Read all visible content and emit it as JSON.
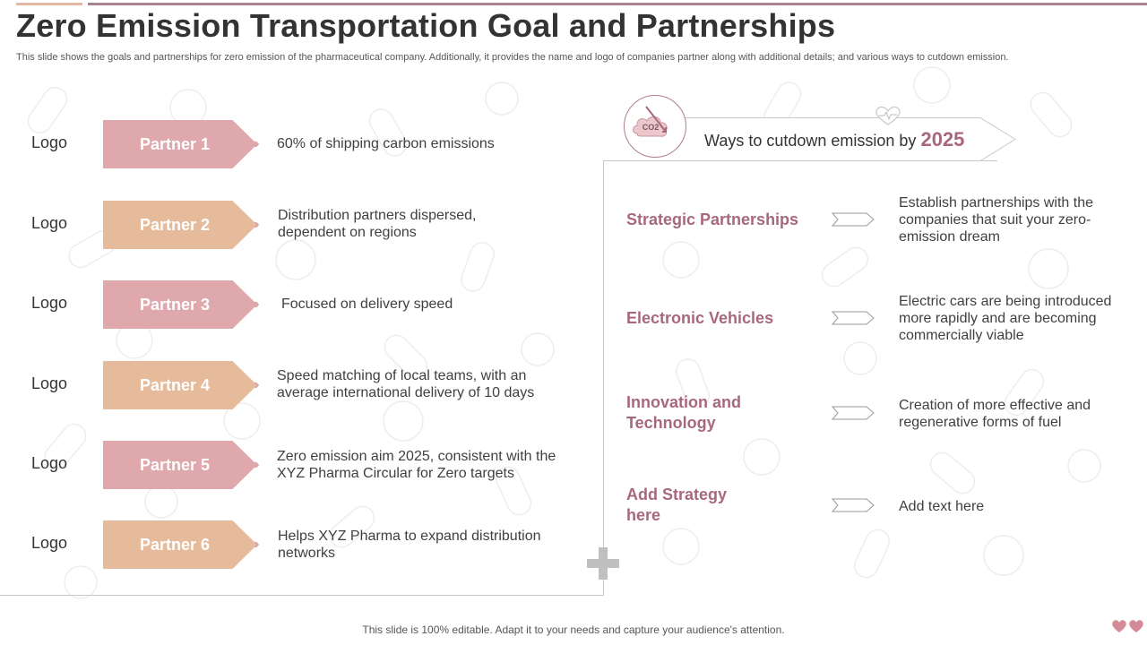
{
  "header": {
    "title": "Zero Emission Transportation Goal and Partnerships",
    "subtitle": "This slide shows the goals and partnerships for zero emission of the pharmaceutical company. Additionally, it provides the name and logo of companies partner along with additional details; and various ways to cutdown emission."
  },
  "partners": [
    {
      "logo": "Logo",
      "name": "Partner 1",
      "desc": "60% of shipping carbon emissions",
      "color": "#dfa8ad"
    },
    {
      "logo": "Logo",
      "name": "Partner 2",
      "desc": "Distribution partners dispersed, dependent on regions",
      "color": "#e6bb9b"
    },
    {
      "logo": "Logo",
      "name": "Partner 3",
      "desc": "Focused on delivery speed",
      "color": "#dfa8ad"
    },
    {
      "logo": "Logo",
      "name": "Partner 4",
      "desc": "Speed matching of local teams, with an average international delivery of 10 days",
      "color": "#e6bb9b"
    },
    {
      "logo": "Logo",
      "name": "Partner 5",
      "desc": "Zero emission aim 2025, consistent with the XYZ Pharma Circular for Zero targets",
      "color": "#dfa8ad"
    },
    {
      "logo": "Logo",
      "name": "Partner 6",
      "desc": "Helps XYZ Pharma to expand distribution networks",
      "color": "#e6bb9b"
    }
  ],
  "ways": {
    "icon_label": "CO2",
    "title": "Ways to cutdown emission by",
    "year": "2025"
  },
  "strategies": [
    {
      "name": "Strategic Partnerships",
      "desc": "Establish partnerships with the companies that suit your zero-emission dream"
    },
    {
      "name": "Electronic Vehicles",
      "desc": "Electric cars are being introduced more rapidly and are becoming commercially viable"
    },
    {
      "name": "Innovation and Technology",
      "desc": "Creation of more effective and regenerative forms of fuel"
    },
    {
      "name": "Add Strategy here",
      "desc": "Add text here"
    }
  ],
  "footer": {
    "text": "This slide is 100% editable. Adapt it to your needs and capture your audience's attention."
  },
  "colors": {
    "accent": "#a8687b",
    "pink": "#dfa8ad",
    "peach": "#e6bb9b"
  }
}
